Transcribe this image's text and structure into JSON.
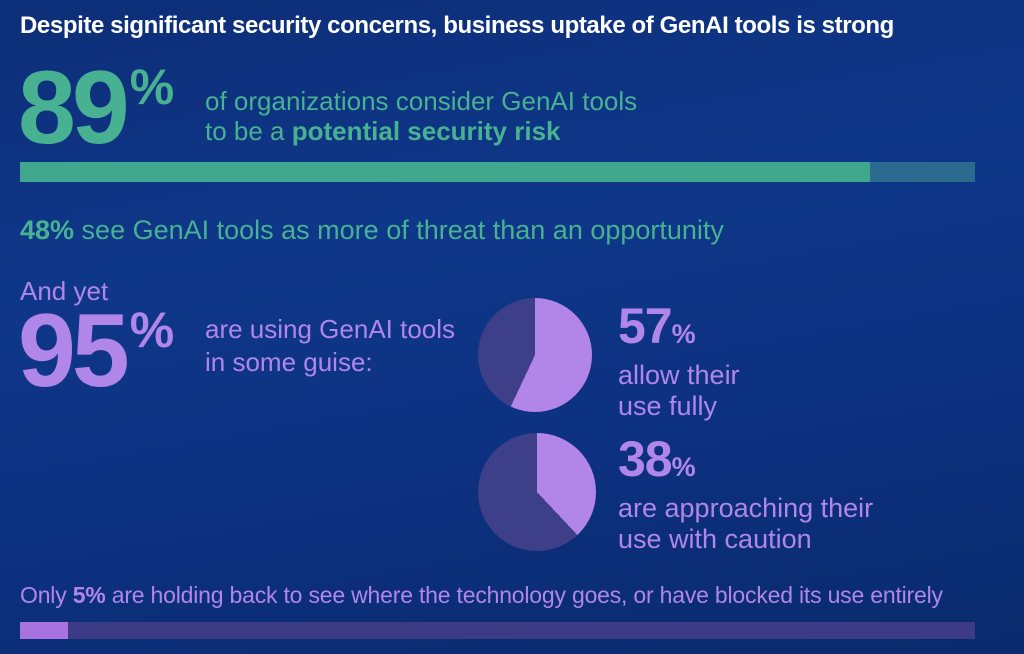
{
  "headline": "Despite significant security concerns, business uptake of GenAI tools is strong",
  "colors": {
    "background_top": "#0d2e78",
    "background_mid": "#0f3789",
    "background_bottom": "#092a6c",
    "title_text": "#ffffff",
    "green_text": "#48b192",
    "green_bar_fill": "#3fa78c",
    "green_bar_rest": "#2b6b90",
    "purple_text": "#b186e9",
    "pie_fill": "#b286e8",
    "pie_rest": "#3d3f88",
    "purple_bar_fill": "#a873de",
    "purple_bar_rest": "#3d3b85"
  },
  "stat_risk": {
    "value": "89",
    "percent_sign": "%",
    "line1": "of organizations consider GenAI tools",
    "line2_prefix": "to be a ",
    "line2_bold": "potential security risk",
    "bar_percent": 89
  },
  "stat_threat": {
    "bold": "48%",
    "rest": " see GenAI tools as more of threat than an opportunity"
  },
  "stat_usage": {
    "intro": "And yet",
    "value": "95",
    "percent_sign": "%",
    "line1": "are using GenAI tools",
    "line2": "in some guise:"
  },
  "pies": [
    {
      "percent": 57,
      "value": "57",
      "percent_sign": "%",
      "line1": "allow their",
      "line2": "use fully"
    },
    {
      "percent": 38,
      "value": "38",
      "percent_sign": "%",
      "line1": "are approaching their",
      "line2": "use with caution"
    }
  ],
  "footer": {
    "prefix": "Only ",
    "bold": "5%",
    "rest": " are holding back to see where the technology goes, or have blocked its use entirely",
    "bar_percent": 5
  },
  "chart_data": [
    {
      "type": "bar",
      "categories": [
        "Organizations that consider GenAI tools a potential security risk"
      ],
      "values": [
        89
      ],
      "title": "89% of organizations consider GenAI tools to be a potential security risk",
      "xlabel": "",
      "ylabel": "",
      "xlim": [
        0,
        100
      ],
      "unit": "%",
      "legend_position": "none",
      "grid": false
    },
    {
      "type": "bar",
      "categories": [
        "See GenAI tools as more of threat than an opportunity"
      ],
      "values": [
        48
      ],
      "title": "48% see GenAI tools as more of threat than an opportunity",
      "xlabel": "",
      "ylabel": "",
      "xlim": [
        0,
        100
      ],
      "unit": "%",
      "legend_position": "none",
      "grid": false
    },
    {
      "type": "pie",
      "categories": [
        "allow their use fully",
        "other"
      ],
      "values": [
        57,
        43
      ],
      "title": "57% allow their use fully",
      "legend_position": "none"
    },
    {
      "type": "pie",
      "categories": [
        "are approaching their use with caution",
        "other"
      ],
      "values": [
        38,
        62
      ],
      "title": "38% are approaching their use with caution",
      "legend_position": "none"
    },
    {
      "type": "bar",
      "categories": [
        "Holding back to see where the technology goes, or have blocked its use entirely"
      ],
      "values": [
        5
      ],
      "title": "Only 5% are holding back or have blocked use entirely",
      "xlabel": "",
      "ylabel": "",
      "xlim": [
        0,
        100
      ],
      "unit": "%",
      "legend_position": "none",
      "grid": false
    }
  ]
}
